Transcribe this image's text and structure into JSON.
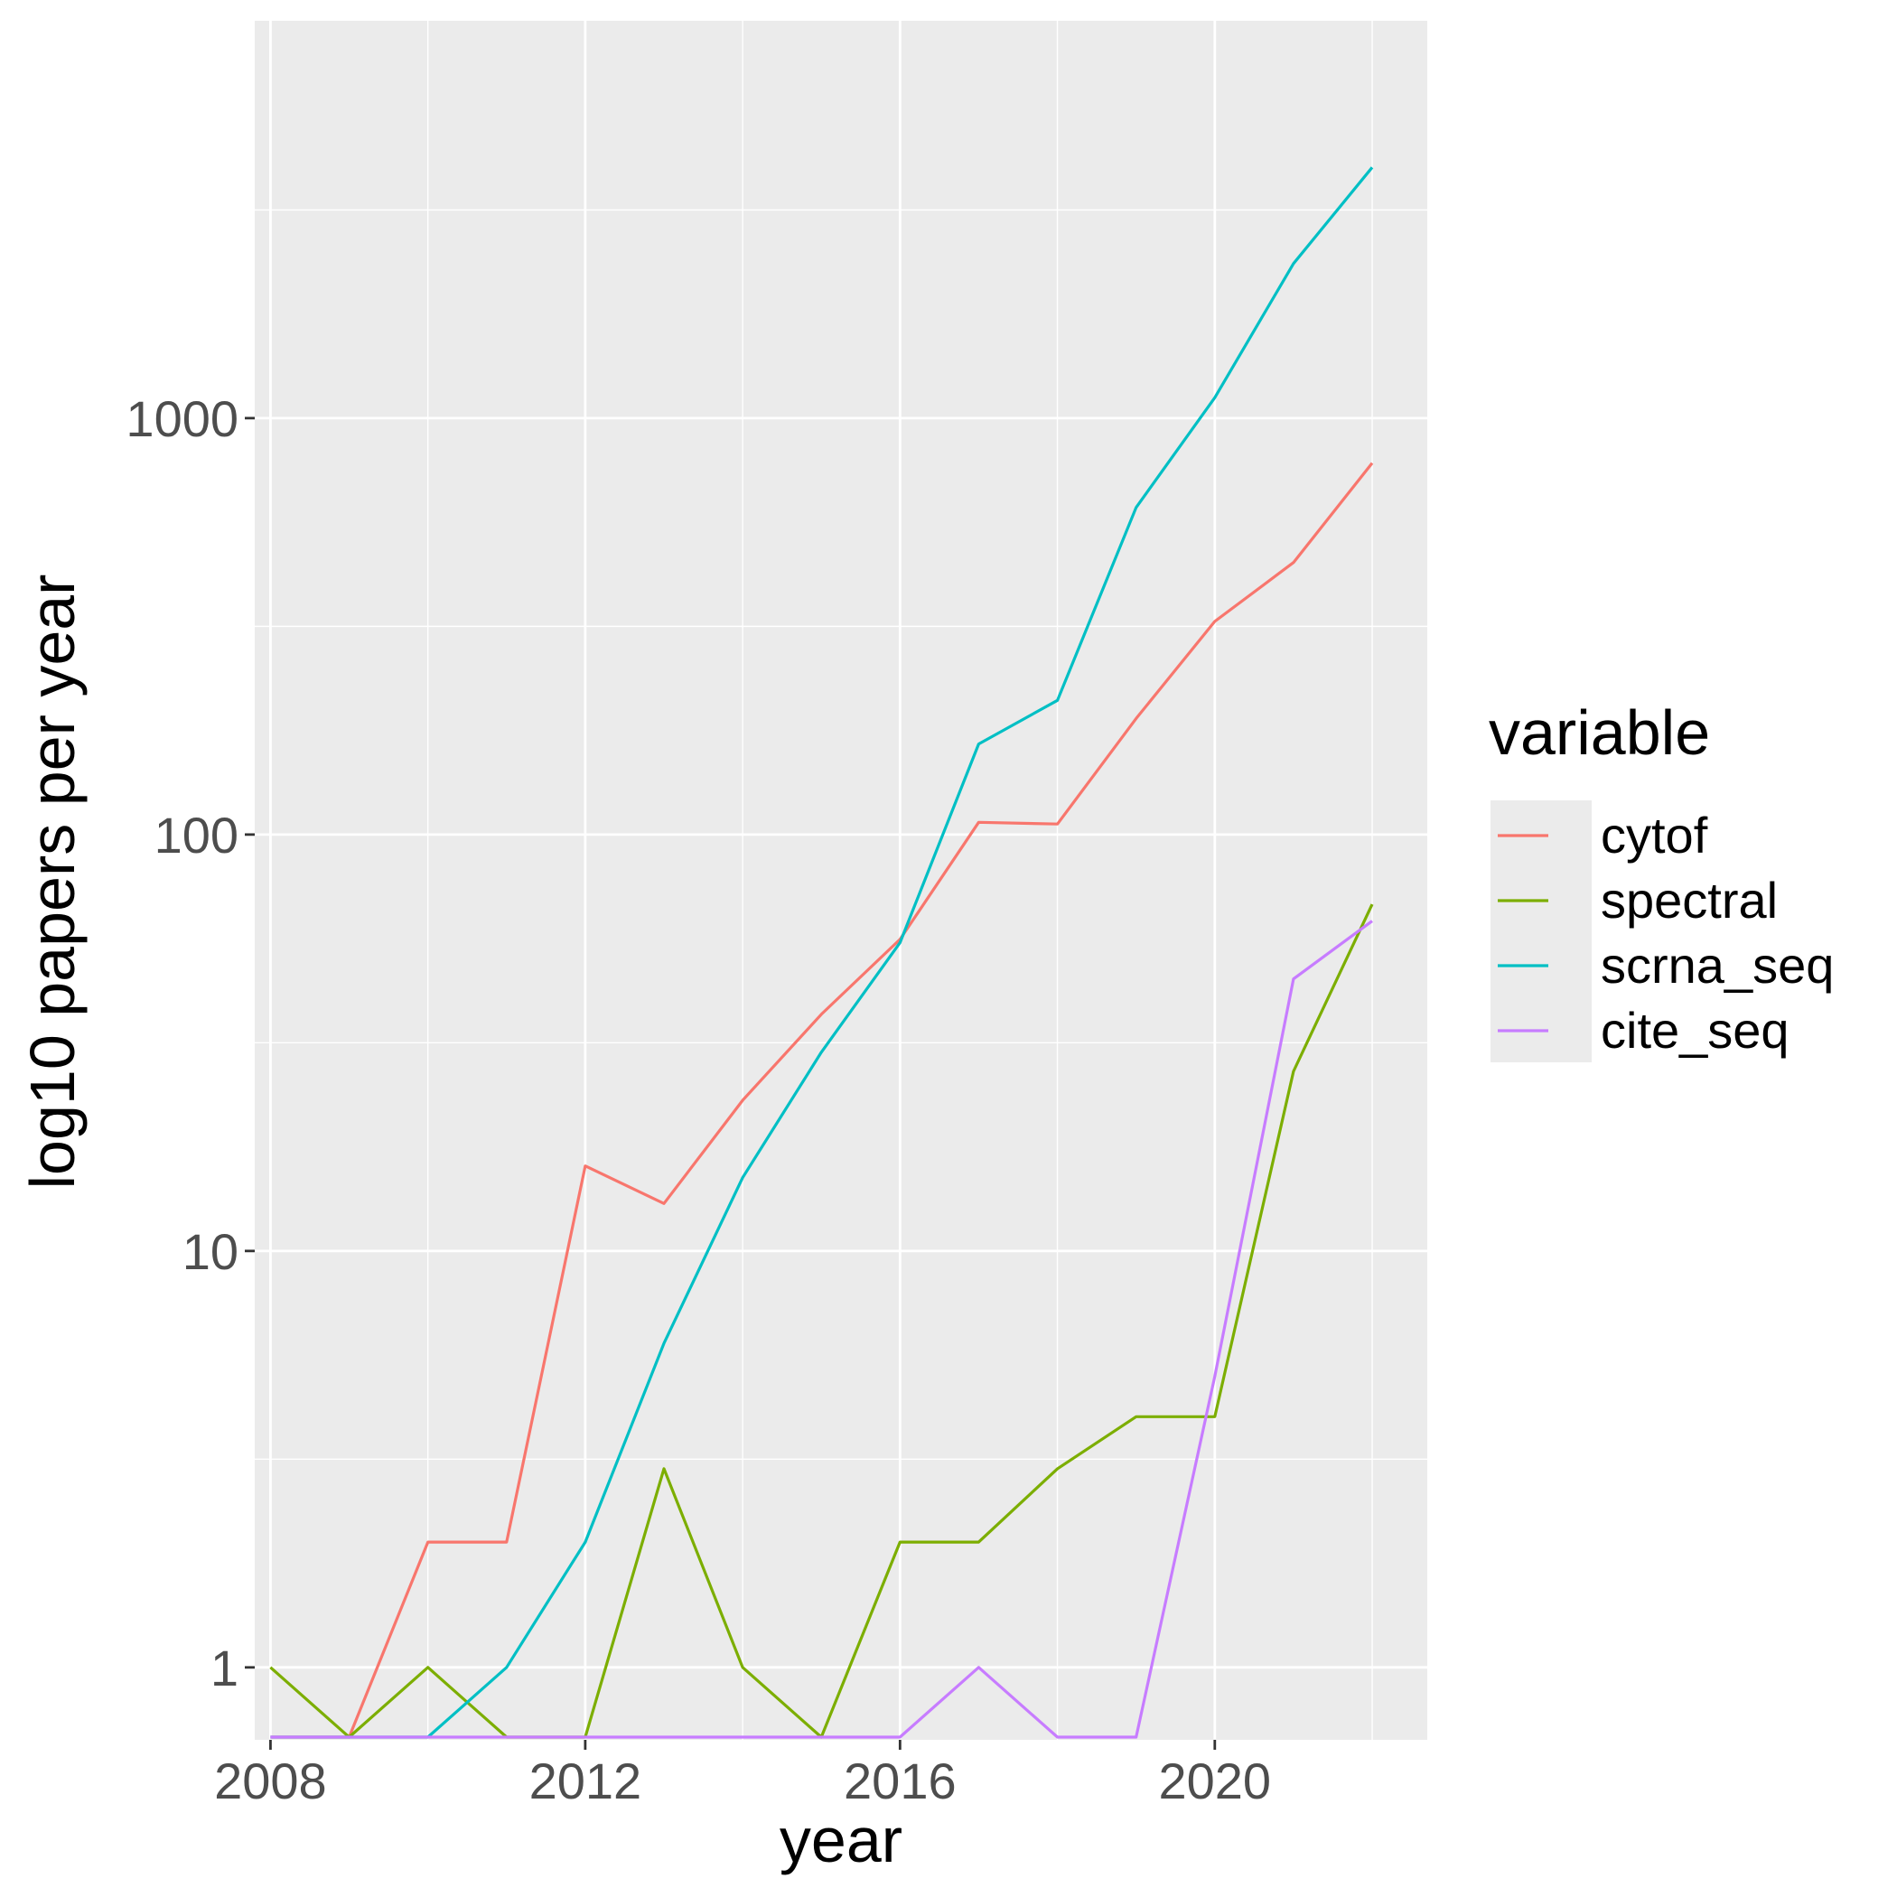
{
  "chart_data": {
    "type": "line",
    "title": "",
    "xlabel": "year",
    "ylabel": "log10 papers per year",
    "x_scale": "linear",
    "y_scale": "log10",
    "xlim": [
      2007.8,
      2022.7
    ],
    "ylim": [
      0.67,
      9000
    ],
    "x_ticks": [
      2008,
      2012,
      2016,
      2020
    ],
    "x_tick_labels": [
      "2008",
      "2012",
      "2016",
      "2020"
    ],
    "y_ticks": [
      1,
      10,
      100,
      1000
    ],
    "y_tick_labels": [
      "1",
      "10",
      "100",
      "1000"
    ],
    "grid": true,
    "legend": {
      "title": "variable",
      "position": "right"
    },
    "x": [
      2008,
      2009,
      2010,
      2011,
      2012,
      2013,
      2014,
      2015,
      2016,
      2017,
      2018,
      2019,
      2020,
      2021,
      2022
    ],
    "series": [
      {
        "name": "cytof",
        "color": "#F8766D",
        "values": [
          0,
          0,
          2,
          2,
          16,
          13,
          23,
          37,
          56,
          107,
          106,
          190,
          325,
          450,
          780
        ]
      },
      {
        "name": "spectral",
        "color": "#7CAE00",
        "values": [
          1,
          0,
          1,
          0,
          0,
          3,
          1,
          0,
          2,
          2,
          3,
          4,
          4,
          27,
          68
        ]
      },
      {
        "name": "scrna_seq",
        "color": "#00BFC4",
        "values": [
          0,
          0,
          0,
          1,
          2,
          6,
          15,
          30,
          55,
          165,
          210,
          610,
          1120,
          2350,
          4000
        ]
      },
      {
        "name": "cite_seq",
        "color": "#C77CFF",
        "values": [
          0,
          0,
          0,
          0,
          0,
          0,
          0,
          0,
          0,
          1,
          0,
          0,
          5,
          45,
          62
        ]
      }
    ]
  }
}
